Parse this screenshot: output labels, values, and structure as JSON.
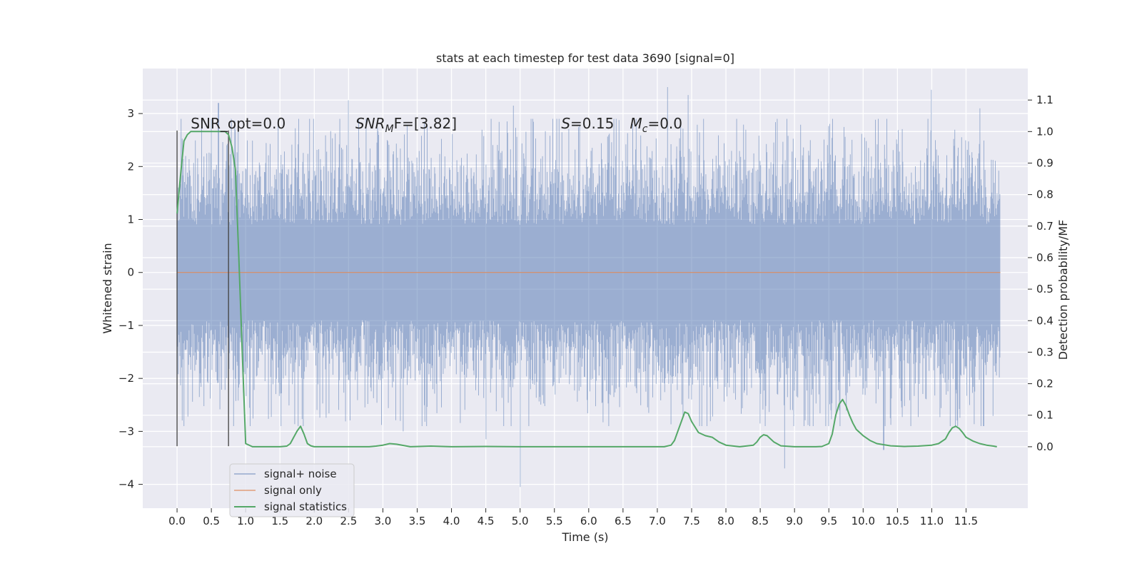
{
  "chart_data": {
    "type": "line",
    "title": "stats at each timestep for test data 3690 [signal=0]",
    "xlabel": "Time (s)",
    "ylabel": "Whitened strain",
    "y2label": "Detection probability/MF",
    "xlim": [
      -0.5,
      12.4
    ],
    "ylim": [
      -4.45,
      3.85
    ],
    "y2lim": [
      -0.195,
      1.2
    ],
    "x_ticks": [
      0.0,
      0.5,
      1.0,
      1.5,
      2.0,
      2.5,
      3.0,
      3.5,
      4.0,
      4.5,
      5.0,
      5.5,
      6.0,
      6.5,
      7.0,
      7.5,
      8.0,
      8.5,
      9.0,
      9.5,
      10.0,
      10.5,
      11.0,
      11.5
    ],
    "x_tick_labels": [
      "0.0",
      "0.5",
      "1.0",
      "1.5",
      "2.0",
      "2.5",
      "3.0",
      "3.5",
      "4.0",
      "4.5",
      "5.0",
      "5.5",
      "6.0",
      "6.5",
      "7.0",
      "7.5",
      "8.0",
      "8.5",
      "9.0",
      "9.5",
      "10.0",
      "10.5",
      "11.0",
      "11.5"
    ],
    "y_ticks": [
      -4,
      -3,
      -2,
      -1,
      0,
      1,
      2,
      3
    ],
    "y_tick_labels": [
      "−4",
      "−3",
      "−2",
      "−1",
      "0",
      "1",
      "2",
      "3"
    ],
    "y2_ticks": [
      0.0,
      0.1,
      0.2,
      0.3,
      0.4,
      0.5,
      0.6,
      0.7,
      0.8,
      0.9,
      1.0,
      1.1
    ],
    "y2_tick_labels": [
      "0.0",
      "0.1",
      "0.2",
      "0.3",
      "0.4",
      "0.5",
      "0.6",
      "0.7",
      "0.8",
      "0.9",
      "1.0",
      "1.1"
    ],
    "grid": true,
    "legend_position": "lower-left",
    "series": [
      {
        "name": "signal+ noise",
        "axis": "left",
        "color": "#4c72b0",
        "x_range": [
          0.0,
          12.0
        ],
        "peak_points": [
          {
            "x": 0.6,
            "y": 3.2
          },
          {
            "x": 2.5,
            "y": 3.25
          },
          {
            "x": 4.9,
            "y": 3.15
          },
          {
            "x": 7.15,
            "y": 3.5
          },
          {
            "x": 7.45,
            "y": 3.35
          },
          {
            "x": 11.0,
            "y": 3.45
          },
          {
            "x": 11.7,
            "y": 3.1
          },
          {
            "x": 5.0,
            "y": -4.05
          },
          {
            "x": 8.85,
            "y": -3.7
          },
          {
            "x": 4.5,
            "y": -3.15
          },
          {
            "x": 3.3,
            "y": -3.0
          },
          {
            "x": 10.3,
            "y": -3.35
          }
        ]
      },
      {
        "name": "signal only",
        "axis": "left",
        "color": "#dd8452",
        "x": [
          0.0,
          12.0
        ],
        "y": [
          0.0,
          0.0
        ]
      },
      {
        "name": "signal statistics",
        "axis": "right",
        "color": "#55a868",
        "x": [
          0.0,
          0.05,
          0.1,
          0.15,
          0.2,
          0.3,
          0.4,
          0.5,
          0.6,
          0.65,
          0.7,
          0.75,
          0.8,
          0.85,
          0.9,
          0.95,
          1.0,
          1.1,
          1.3,
          1.5,
          1.6,
          1.65,
          1.7,
          1.75,
          1.8,
          1.85,
          1.9,
          1.95,
          2.0,
          2.2,
          2.5,
          2.8,
          2.9,
          3.0,
          3.1,
          3.2,
          3.4,
          3.7,
          4.0,
          4.5,
          5.0,
          5.5,
          6.0,
          6.5,
          7.0,
          7.1,
          7.2,
          7.25,
          7.3,
          7.35,
          7.4,
          7.45,
          7.5,
          7.6,
          7.7,
          7.8,
          7.9,
          8.0,
          8.2,
          8.4,
          8.45,
          8.5,
          8.55,
          8.6,
          8.7,
          8.8,
          9.0,
          9.3,
          9.4,
          9.5,
          9.55,
          9.6,
          9.65,
          9.7,
          9.75,
          9.8,
          9.85,
          9.9,
          10.0,
          10.1,
          10.2,
          10.4,
          10.6,
          10.8,
          11.0,
          11.1,
          11.2,
          11.25,
          11.3,
          11.35,
          11.4,
          11.45,
          11.5,
          11.6,
          11.7,
          11.8,
          11.9,
          11.95
        ],
        "y": [
          0.74,
          0.86,
          0.97,
          0.99,
          1.0,
          1.0,
          1.0,
          1.0,
          1.0,
          1.0,
          1.0,
          0.99,
          0.95,
          0.88,
          0.6,
          0.3,
          0.01,
          0.0,
          0.0,
          0.0,
          0.002,
          0.01,
          0.03,
          0.05,
          0.065,
          0.04,
          0.01,
          0.003,
          0.0,
          0.0,
          0.0,
          0.0,
          0.002,
          0.005,
          0.01,
          0.008,
          0.0,
          0.002,
          0.0,
          0.001,
          0.0,
          0.0,
          0.0,
          0.0,
          0.0,
          0.0,
          0.005,
          0.02,
          0.05,
          0.08,
          0.11,
          0.105,
          0.08,
          0.045,
          0.035,
          0.03,
          0.015,
          0.005,
          0.0,
          0.005,
          0.015,
          0.03,
          0.038,
          0.035,
          0.015,
          0.003,
          0.0,
          0.0,
          0.001,
          0.01,
          0.04,
          0.1,
          0.135,
          0.15,
          0.13,
          0.1,
          0.075,
          0.055,
          0.035,
          0.02,
          0.01,
          0.003,
          0.001,
          0.002,
          0.005,
          0.01,
          0.025,
          0.045,
          0.06,
          0.065,
          0.058,
          0.045,
          0.03,
          0.018,
          0.01,
          0.005,
          0.002,
          0.0
        ]
      }
    ],
    "vertical_lines": [
      {
        "x": 0.0,
        "ymin": -3.28,
        "ymax": 2.68
      },
      {
        "x": 0.75,
        "ymin": -3.28,
        "ymax": 2.68
      }
    ],
    "annotations": [
      {
        "id": "snr-opt",
        "text": "SNR_opt=0.0",
        "x": 0.2,
        "y": 2.72
      },
      {
        "id": "snr-mf",
        "prefix": "SNR",
        "sub": "M",
        "suffix": "F=[3.82]",
        "x": 2.6,
        "y": 2.72
      },
      {
        "id": "s-val",
        "prefix": "S",
        "suffix": "=0.15",
        "x": 5.6,
        "y": 2.72
      },
      {
        "id": "mc-val",
        "prefix": "M",
        "sub": "c",
        "suffix": "=0.0",
        "x": 6.6,
        "y": 2.72
      }
    ]
  }
}
